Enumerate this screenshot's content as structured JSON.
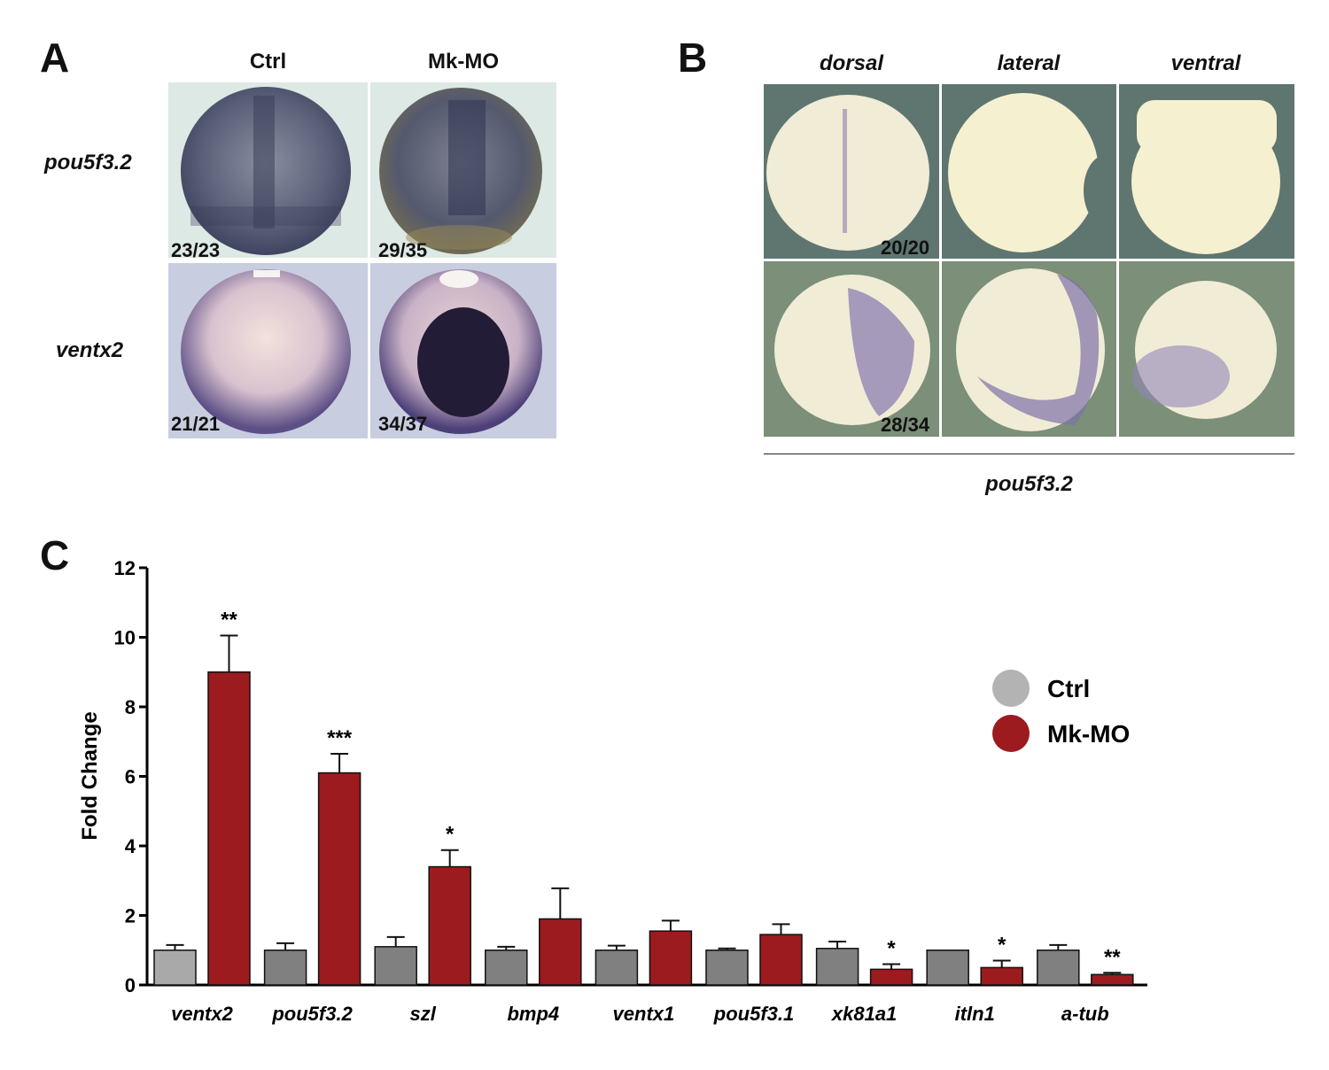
{
  "panel_a": {
    "letter": "A",
    "columns": [
      "Ctrl",
      "Mk-MO"
    ],
    "rows": [
      {
        "gene": "pou5f3.2",
        "counts": [
          "23/23",
          "29/35"
        ]
      },
      {
        "gene": "ventx2",
        "counts": [
          "21/21",
          "34/37"
        ]
      }
    ]
  },
  "panel_b": {
    "letter": "B",
    "views": [
      "dorsal",
      "lateral",
      "ventral"
    ],
    "counts": [
      "20/20",
      "28/34"
    ],
    "gene": "pou5f3.2"
  },
  "panel_c": {
    "letter": "C"
  },
  "chart_data": {
    "type": "bar",
    "title": "",
    "xlabel": "",
    "ylabel": "Fold Change",
    "ylim": [
      0,
      12
    ],
    "yticks": [
      "0",
      "2",
      "4",
      "6",
      "8",
      "10",
      "12"
    ],
    "categories": [
      "ventx2",
      "pou5f3.2",
      "szl",
      "bmp4",
      "ventx1",
      "pou5f3.1",
      "xk81a1",
      "itln1",
      "a-tub"
    ],
    "series": [
      {
        "name": "Ctrl",
        "color": "#808080",
        "values": [
          1.0,
          1.0,
          1.1,
          1.0,
          1.0,
          1.0,
          1.05,
          1.0,
          1.0
        ],
        "errors": [
          0.15,
          0.2,
          0.28,
          0.1,
          0.13,
          0.05,
          0.2,
          0.0,
          0.15
        ]
      },
      {
        "name": "Mk-MO",
        "color": "#9b1b1e",
        "values": [
          9.0,
          6.1,
          3.4,
          1.9,
          1.55,
          1.45,
          0.45,
          0.5,
          0.3
        ],
        "errors": [
          1.05,
          0.55,
          0.48,
          0.88,
          0.3,
          0.3,
          0.15,
          0.2,
          0.05
        ]
      }
    ],
    "significance": [
      "**",
      "***",
      "*",
      "",
      "",
      "",
      "*",
      "*",
      "**"
    ],
    "legend": {
      "position": "right",
      "items": [
        "Ctrl",
        "Mk-MO"
      ],
      "colors": [
        "#b3b3b3",
        "#9b1b1e"
      ]
    }
  }
}
